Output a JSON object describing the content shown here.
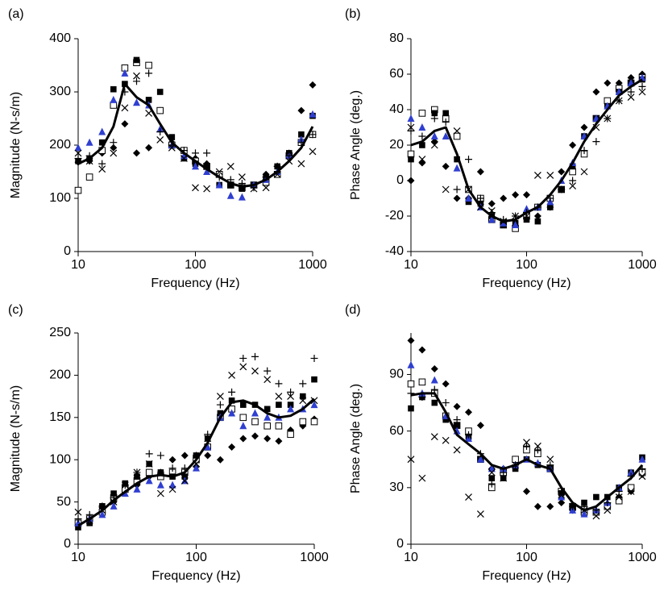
{
  "chart_data": [
    {
      "type": "scatter",
      "panel_label": "(a)",
      "xlabel": "Frequency (Hz)",
      "ylabel": "Magnitude (N-s/m)",
      "x_scale": "log",
      "x": [
        10,
        12.5,
        16,
        20,
        25,
        31.5,
        40,
        50,
        63,
        80,
        100,
        125,
        160,
        200,
        250,
        315,
        400,
        500,
        630,
        800,
        1000
      ],
      "xlim": [
        10,
        1000
      ],
      "xticks": [
        10,
        100,
        1000
      ],
      "ylim": [
        0,
        400
      ],
      "yticks": [
        0,
        100,
        200,
        300,
        400
      ],
      "series": [
        {
          "marker": "diamond",
          "color": "#000000",
          "values": [
            168,
            170,
            185,
            195,
            240,
            185,
            195,
            265,
            205,
            190,
            175,
            165,
            145,
            125,
            120,
            125,
            145,
            160,
            185,
            265,
            313
          ]
        },
        {
          "marker": "open-square",
          "color": "#000000",
          "values": [
            115,
            140,
            190,
            275,
            345,
            355,
            350,
            265,
            200,
            190,
            170,
            160,
            145,
            125,
            120,
            125,
            130,
            145,
            180,
            205,
            220
          ]
        },
        {
          "marker": "square",
          "color": "#000000",
          "values": [
            170,
            175,
            205,
            305,
            315,
            360,
            285,
            300,
            215,
            175,
            165,
            160,
            125,
            125,
            118,
            125,
            140,
            160,
            185,
            220,
            255
          ]
        },
        {
          "marker": "triangle",
          "color": "#2f3fd0",
          "values": [
            195,
            205,
            225,
            285,
            335,
            280,
            275,
            230,
            200,
            180,
            160,
            150,
            125,
            105,
            102,
            125,
            135,
            150,
            180,
            210,
            258
          ]
        },
        {
          "marker": "plus",
          "color": "#000000",
          "values": [
            175,
            180,
            165,
            205,
            300,
            320,
            335,
            225,
            200,
            190,
            185,
            185,
            140,
            135,
            128,
            120,
            140,
            160,
            180,
            205,
            220
          ]
        },
        {
          "marker": "cross",
          "color": "#000000",
          "values": [
            185,
            170,
            155,
            185,
            270,
            330,
            260,
            210,
            195,
            175,
            120,
            118,
            150,
            160,
            140,
            118,
            120,
            145,
            170,
            165,
            188
          ]
        },
        {
          "marker": "line",
          "color": "#000000",
          "values": [
            165,
            175,
            195,
            235,
            315,
            290,
            275,
            240,
            205,
            185,
            170,
            155,
            140,
            128,
            122,
            125,
            135,
            150,
            170,
            195,
            235
          ]
        }
      ]
    },
    {
      "type": "scatter",
      "panel_label": "(b)",
      "xlabel": "Frequency (Hz)",
      "ylabel": "Phase Angle (deg.)",
      "x_scale": "log",
      "x": [
        10,
        12.5,
        16,
        20,
        25,
        31.5,
        40,
        50,
        63,
        80,
        100,
        125,
        160,
        200,
        250,
        315,
        400,
        500,
        630,
        800,
        1000
      ],
      "xlim": [
        10,
        1000
      ],
      "xticks": [
        10,
        100,
        1000
      ],
      "ylim": [
        -40,
        80
      ],
      "yticks": [
        -40,
        -20,
        0,
        20,
        40,
        60,
        80
      ],
      "series": [
        {
          "marker": "diamond",
          "color": "#000000",
          "values": [
            0,
            10,
            22,
            8,
            -10,
            -10,
            5,
            -13,
            -10,
            -8,
            -8,
            -20,
            -15,
            5,
            20,
            30,
            50,
            55,
            55,
            58,
            60
          ]
        },
        {
          "marker": "open-square",
          "color": "#000000",
          "values": [
            15,
            38,
            40,
            35,
            25,
            -5,
            -10,
            -22,
            -25,
            -27,
            -20,
            -15,
            -10,
            -5,
            5,
            15,
            35,
            45,
            52,
            55,
            58
          ]
        },
        {
          "marker": "square",
          "color": "#000000",
          "values": [
            12,
            20,
            38,
            38,
            12,
            -12,
            -13,
            -20,
            -25,
            -24,
            -22,
            -23,
            -15,
            -5,
            8,
            25,
            35,
            42,
            50,
            55,
            57
          ]
        },
        {
          "marker": "triangle",
          "color": "#2f3fd0",
          "values": [
            35,
            30,
            25,
            25,
            7,
            -10,
            -15,
            -22,
            -24,
            -25,
            -16,
            -15,
            -12,
            0,
            10,
            25,
            35,
            42,
            50,
            55,
            58
          ]
        },
        {
          "marker": "plus",
          "color": "#000000",
          "values": [
            28,
            25,
            35,
            33,
            -5,
            12,
            -10,
            -18,
            -22,
            -20,
            -18,
            -15,
            -10,
            -5,
            0,
            17,
            22,
            35,
            45,
            50,
            53
          ]
        },
        {
          "marker": "cross",
          "color": "#000000",
          "values": [
            30,
            12,
            20,
            -5,
            28,
            -5,
            -15,
            -17,
            -23,
            -20,
            -20,
            3,
            3,
            -5,
            -3,
            5,
            30,
            35,
            45,
            47,
            50
          ]
        },
        {
          "marker": "line",
          "color": "#000000",
          "values": [
            20,
            22,
            28,
            30,
            15,
            -5,
            -15,
            -20,
            -23,
            -22,
            -18,
            -15,
            -8,
            0,
            10,
            22,
            32,
            40,
            48,
            53,
            57
          ]
        }
      ]
    },
    {
      "type": "scatter",
      "panel_label": "(c)",
      "xlabel": "Frequency (Hz)",
      "ylabel": "Magnitude (N-s/m)",
      "x_scale": "log",
      "x": [
        10,
        12.5,
        16,
        20,
        25,
        31.5,
        40,
        50,
        63,
        80,
        100,
        125,
        160,
        200,
        250,
        315,
        400,
        500,
        630,
        800,
        1000
      ],
      "xlim": [
        10,
        1000
      ],
      "xticks": [
        10,
        100,
        1000
      ],
      "ylim": [
        0,
        250
      ],
      "yticks": [
        0,
        50,
        100,
        150,
        200,
        250
      ],
      "series": [
        {
          "marker": "diamond",
          "color": "#000000",
          "values": [
            22,
            28,
            38,
            50,
            65,
            70,
            80,
            85,
            100,
            105,
            92,
            105,
            100,
            115,
            125,
            128,
            125,
            122,
            135,
            140,
            148
          ]
        },
        {
          "marker": "open-square",
          "color": "#000000",
          "values": [
            25,
            30,
            38,
            55,
            65,
            75,
            85,
            80,
            85,
            85,
            100,
            115,
            150,
            160,
            150,
            145,
            140,
            140,
            130,
            145,
            145
          ]
        },
        {
          "marker": "square",
          "color": "#000000",
          "values": [
            20,
            25,
            45,
            60,
            72,
            80,
            95,
            85,
            80,
            80,
            105,
            125,
            155,
            170,
            165,
            165,
            160,
            165,
            165,
            175,
            195
          ]
        },
        {
          "marker": "triangle",
          "color": "#2f3fd0",
          "values": [
            25,
            30,
            35,
            45,
            60,
            65,
            75,
            70,
            70,
            75,
            90,
            115,
            150,
            155,
            140,
            155,
            150,
            150,
            160,
            160,
            165
          ]
        },
        {
          "marker": "plus",
          "color": "#000000",
          "values": [
            30,
            35,
            45,
            55,
            70,
            85,
            107,
            105,
            90,
            90,
            105,
            130,
            165,
            180,
            220,
            222,
            205,
            190,
            180,
            190,
            220
          ]
        },
        {
          "marker": "cross",
          "color": "#000000",
          "values": [
            38,
            28,
            40,
            50,
            70,
            85,
            95,
            60,
            65,
            75,
            95,
            125,
            175,
            200,
            210,
            205,
            195,
            175,
            175,
            170,
            170
          ]
        },
        {
          "marker": "line",
          "color": "#000000",
          "values": [
            22,
            30,
            40,
            52,
            62,
            72,
            80,
            82,
            80,
            85,
            100,
            120,
            150,
            168,
            170,
            165,
            155,
            150,
            152,
            160,
            172
          ]
        }
      ]
    },
    {
      "type": "scatter",
      "panel_label": "(d)",
      "xlabel": "Frequency (Hz)",
      "ylabel": "Phase Angle (deg.)",
      "x_scale": "log",
      "x": [
        10,
        12.5,
        16,
        20,
        25,
        31.5,
        40,
        50,
        63,
        80,
        100,
        125,
        160,
        200,
        250,
        315,
        400,
        500,
        630,
        800,
        1000
      ],
      "xlim": [
        10,
        1000
      ],
      "xticks": [
        10,
        100,
        1000
      ],
      "ylim": [
        0,
        112
      ],
      "yticks": [
        0,
        30,
        60,
        90
      ],
      "series": [
        {
          "marker": "diamond",
          "color": "#000000",
          "values": [
            108,
            103,
            93,
            85,
            73,
            70,
            63,
            40,
            40,
            45,
            28,
            20,
            20,
            22,
            18,
            17,
            17,
            20,
            25,
            28,
            37
          ]
        },
        {
          "marker": "open-square",
          "color": "#000000",
          "values": [
            85,
            86,
            80,
            68,
            63,
            60,
            45,
            30,
            38,
            45,
            50,
            48,
            40,
            28,
            20,
            17,
            17,
            20,
            23,
            30,
            38
          ]
        },
        {
          "marker": "square",
          "color": "#000000",
          "values": [
            72,
            78,
            75,
            66,
            63,
            57,
            45,
            35,
            35,
            40,
            45,
            42,
            40,
            27,
            20,
            22,
            25,
            25,
            30,
            38,
            46
          ]
        },
        {
          "marker": "triangle",
          "color": "#2f3fd0",
          "values": [
            95,
            80,
            87,
            68,
            60,
            56,
            45,
            40,
            40,
            42,
            45,
            43,
            40,
            25,
            18,
            16,
            18,
            22,
            30,
            38,
            45
          ]
        },
        {
          "marker": "plus",
          "color": "#000000",
          "values": [
            80,
            78,
            82,
            75,
            66,
            58,
            48,
            32,
            38,
            42,
            52,
            50,
            42,
            28,
            20,
            20,
            18,
            22,
            28,
            36,
            40
          ]
        },
        {
          "marker": "cross",
          "color": "#000000",
          "values": [
            45,
            35,
            57,
            55,
            50,
            25,
            16,
            38,
            35,
            42,
            54,
            52,
            45,
            26,
            20,
            18,
            15,
            18,
            25,
            28,
            36
          ]
        },
        {
          "marker": "line",
          "color": "#000000",
          "values": [
            79,
            80,
            80,
            70,
            58,
            53,
            48,
            42,
            40,
            42,
            45,
            42,
            40,
            30,
            22,
            18,
            20,
            25,
            30,
            35,
            42
          ]
        }
      ]
    }
  ]
}
